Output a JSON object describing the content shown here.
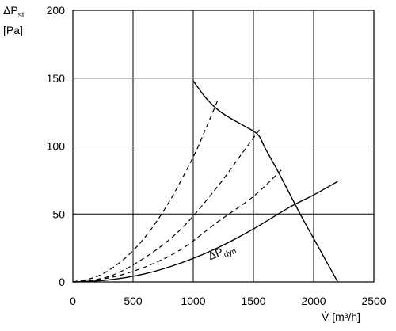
{
  "chart_data": {
    "type": "line",
    "ylabel_line1": "ΔP",
    "ylabel_sub": "st",
    "ylabel_line2": "[Pa]",
    "xlabel": "V̇ [m³/h]",
    "xlim": [
      0,
      2500
    ],
    "ylim": [
      0,
      200
    ],
    "xticks": [
      0,
      500,
      1000,
      1500,
      2000,
      2500
    ],
    "yticks": [
      0,
      50,
      100,
      150,
      200
    ],
    "grid": true,
    "series": [
      {
        "style": "solid",
        "x": [
          1000,
          1100,
          1200,
          1300,
          1400,
          1500,
          1550,
          1600,
          1700,
          1800,
          1900,
          2000,
          2100,
          2200
        ],
        "y": [
          148,
          136,
          127,
          121,
          116,
          111,
          107,
          98,
          82,
          65,
          48,
          32,
          16,
          0
        ]
      },
      {
        "style": "dashed",
        "x": [
          0,
          200,
          400,
          600,
          800,
          1000,
          1100,
          1200
        ],
        "y": [
          0,
          4,
          15,
          33,
          59,
          92,
          112,
          133
        ]
      },
      {
        "style": "dashed",
        "x": [
          0,
          300,
          600,
          900,
          1200,
          1400,
          1550
        ],
        "y": [
          0,
          4,
          18,
          39,
          70,
          94,
          112
        ]
      },
      {
        "style": "dashed",
        "x": [
          0,
          300,
          600,
          900,
          1200,
          1500,
          1750
        ],
        "y": [
          0,
          3,
          11,
          24,
          44,
          63,
          84
        ]
      },
      {
        "name": "ΔPdyn",
        "style": "solid",
        "x": [
          0,
          300,
          600,
          900,
          1200,
          1500,
          1800,
          2000,
          2200
        ],
        "y": [
          0,
          1.5,
          6,
          14,
          25,
          39,
          55,
          64,
          74
        ]
      }
    ],
    "annotation": {
      "text": "ΔP",
      "sub": "dyn",
      "x": 1140,
      "y": 16
    }
  }
}
